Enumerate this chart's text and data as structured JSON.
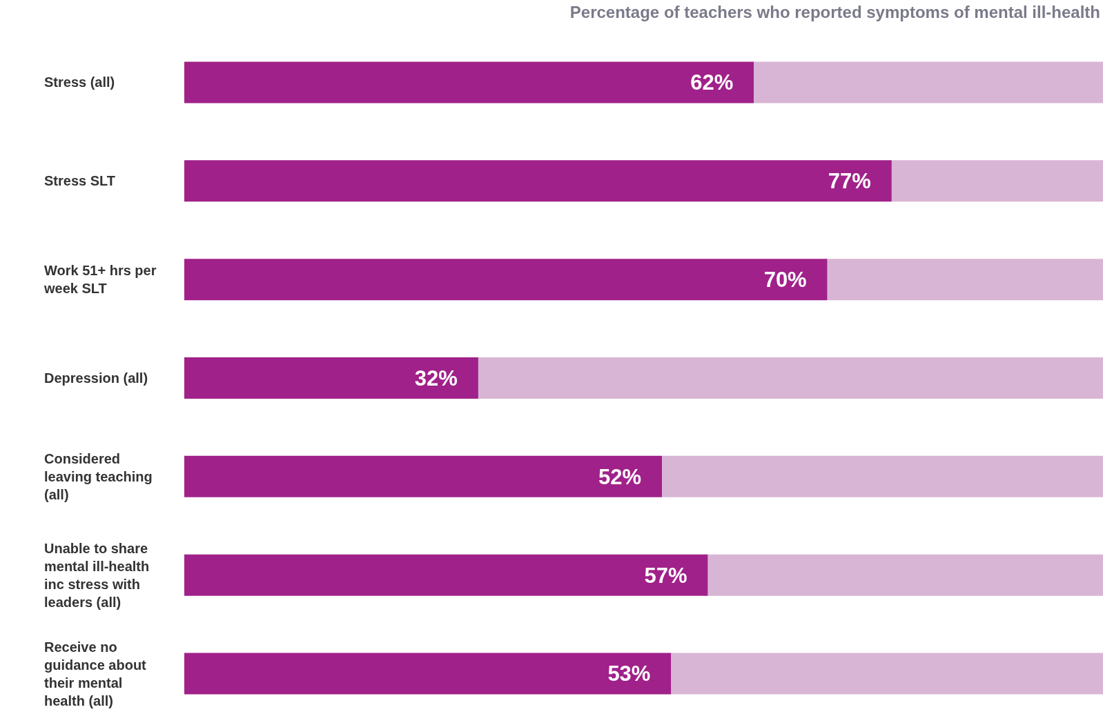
{
  "chart_data": {
    "type": "bar",
    "orientation": "horizontal",
    "stacked": true,
    "title": "Percentage of teachers who reported symptoms of mental ill-health",
    "categories": [
      "Stress (all)",
      "Stress SLT",
      "Work 51+ hrs per week SLT",
      "Depression (all)",
      "Considered leaving teaching (all)",
      "Unable to share mental ill-health inc stress with leaders (all)",
      "Receive no guidance about their mental health (all)"
    ],
    "series": [
      {
        "color": "#a0218a",
        "values": [
          62,
          77,
          70,
          32,
          52,
          57,
          53
        ],
        "value_labels": [
          "62%",
          "77%",
          "70%",
          "32%",
          "52%",
          "57%",
          "53%"
        ]
      },
      {
        "color": "#d8b5d5",
        "values": [
          38,
          23,
          30,
          68,
          48,
          43,
          47
        ]
      }
    ],
    "xlim": [
      0,
      100
    ],
    "tick_labels": "y",
    "legend": false,
    "grid": false
  }
}
